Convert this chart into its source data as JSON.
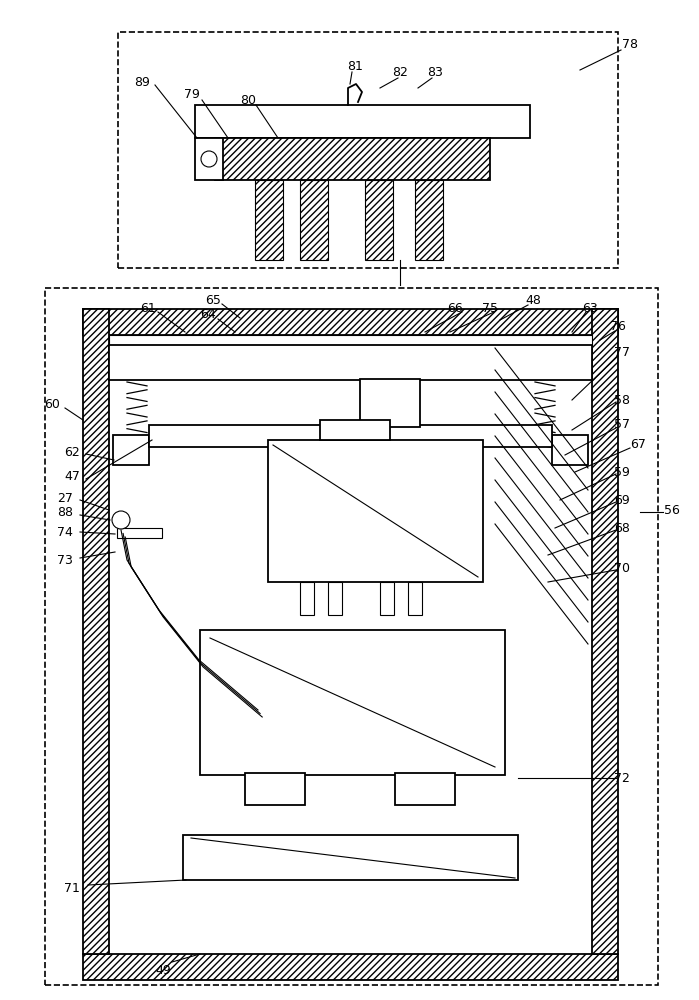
{
  "fig_width": 6.99,
  "fig_height": 10.0,
  "dpi": 100,
  "bg_color": "#ffffff"
}
